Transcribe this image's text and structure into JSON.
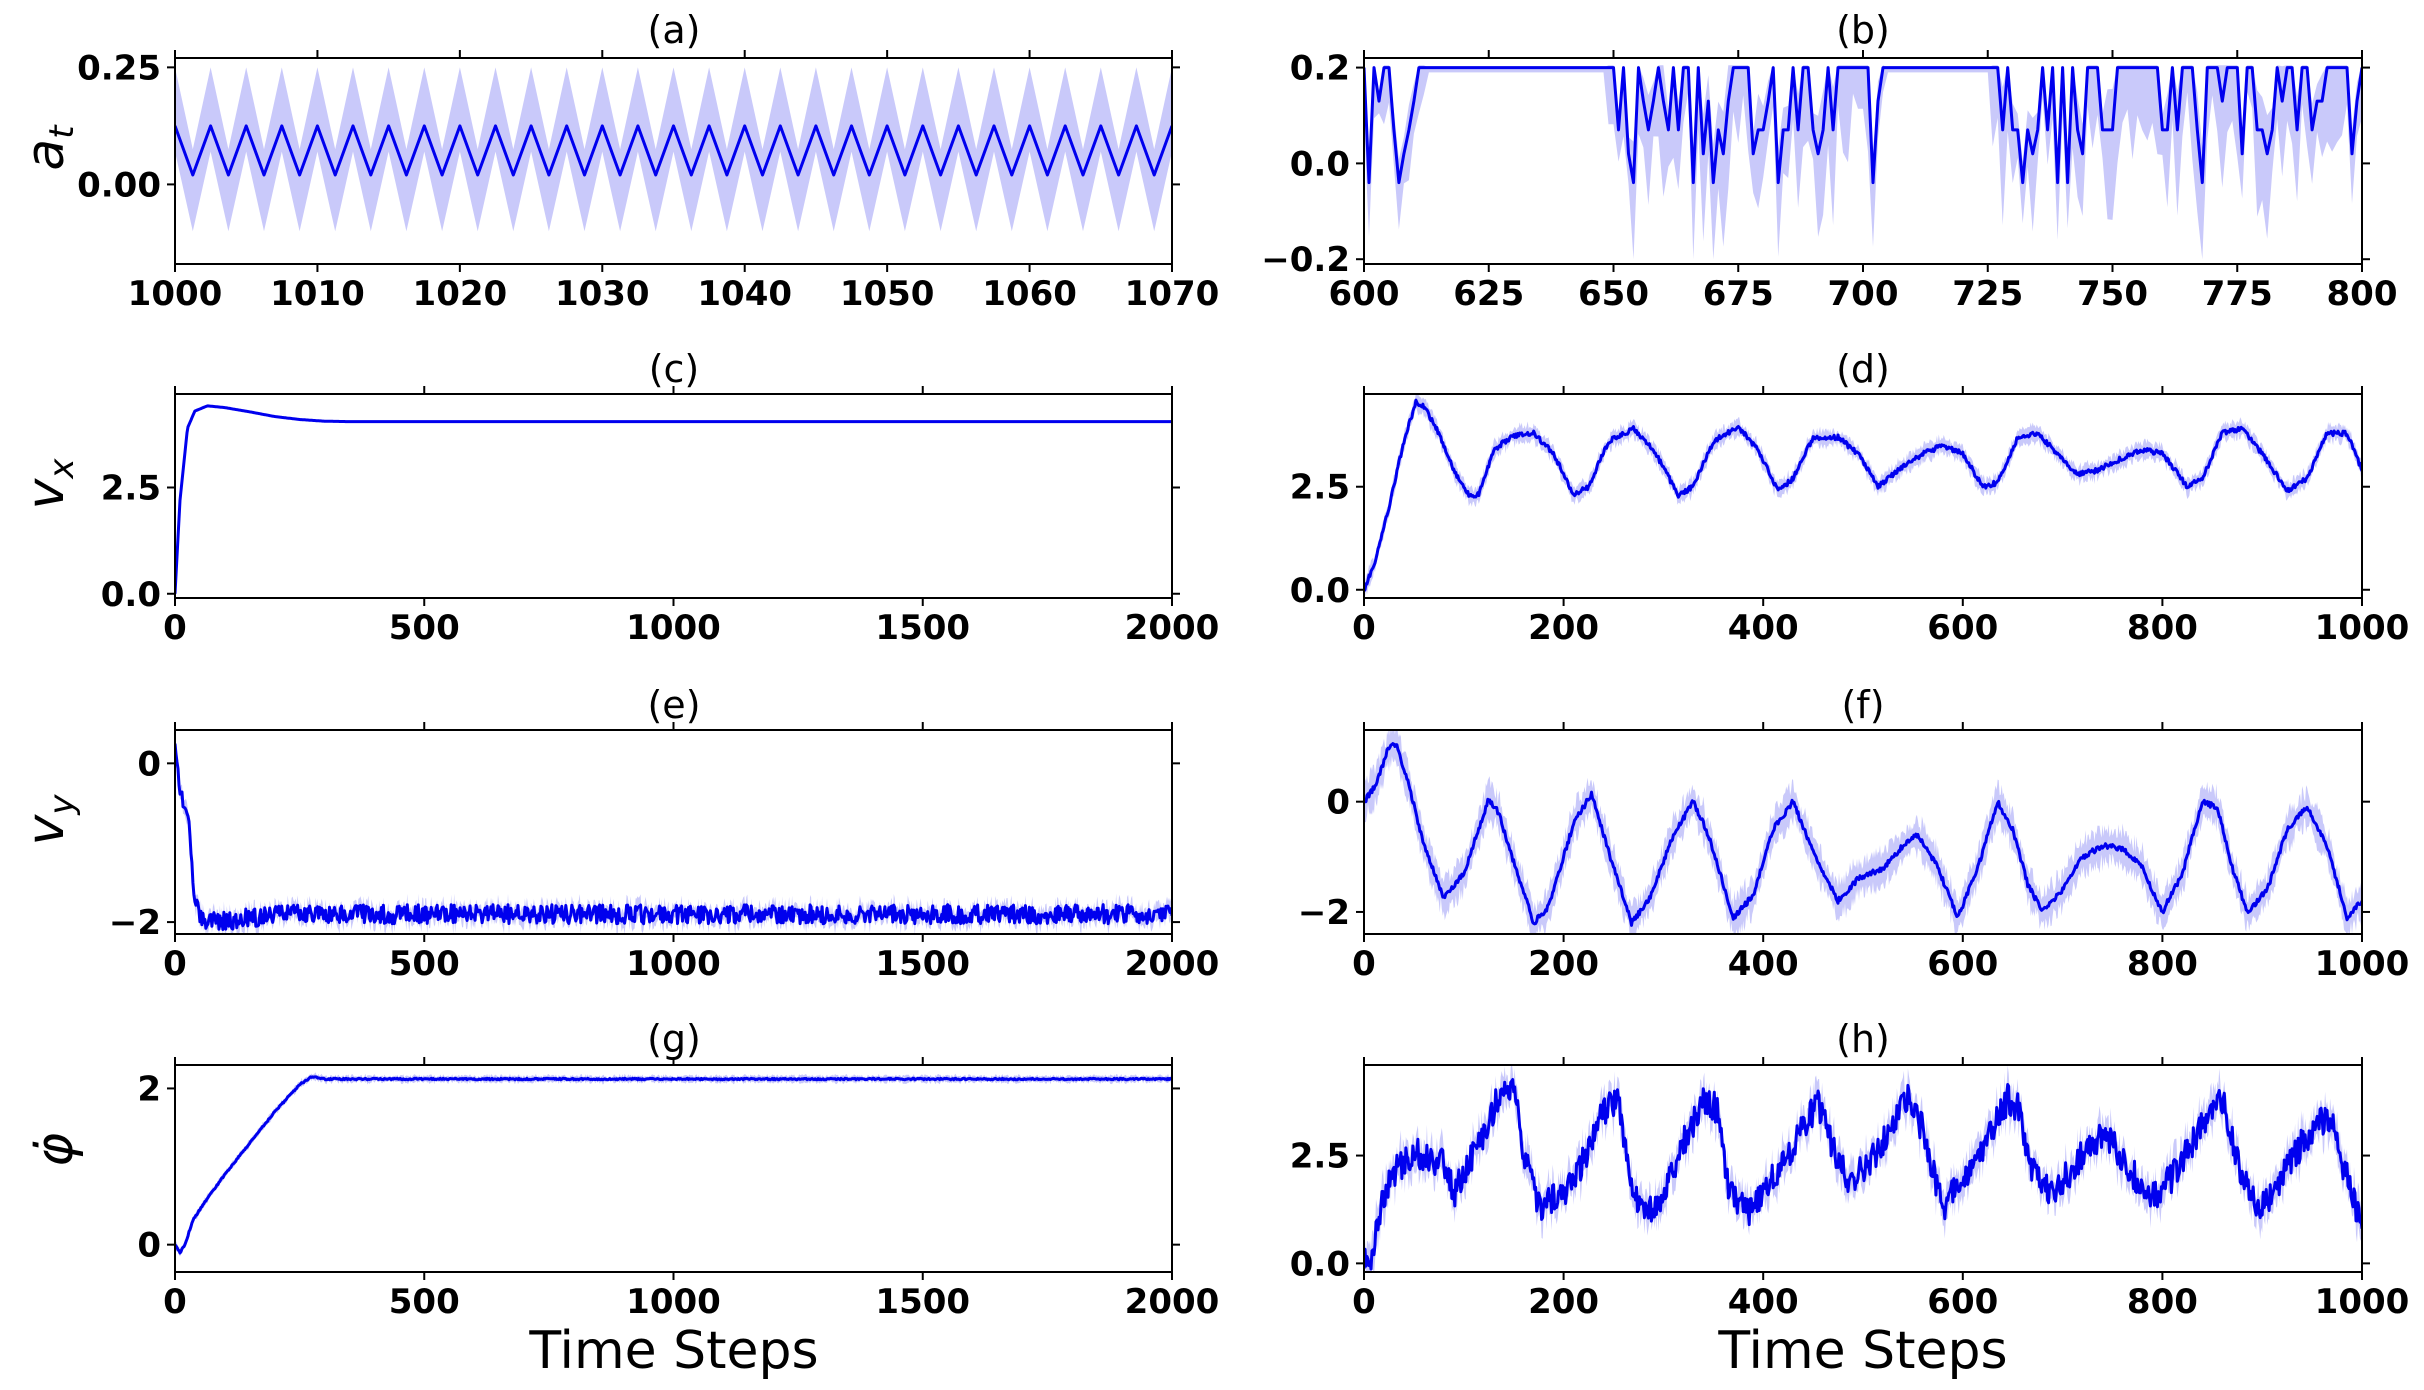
{
  "colors": {
    "line": "#0000ee",
    "band": "#9c9cf6",
    "axes": "#000000"
  },
  "chart_data": [
    {
      "id": "a",
      "type": "line",
      "title": "(a)",
      "ylabel": "a_t",
      "xlabel": "",
      "xlim": [
        1000,
        1070
      ],
      "ylim": [
        -0.17,
        0.27
      ],
      "xticks": [
        1000,
        1010,
        1020,
        1030,
        1040,
        1050,
        1060,
        1070
      ],
      "yticks": [
        0.0,
        0.25
      ],
      "ytick_labels": [
        "0.00",
        "0.25"
      ],
      "generator": {
        "kind": "zigzag",
        "period": 2.5,
        "low": 0.02,
        "high": 0.125,
        "low_band": -0.1,
        "high_band": 0.25
      }
    },
    {
      "id": "b",
      "type": "line",
      "title": "(b)",
      "ylabel": "",
      "xlabel": "",
      "xlim": [
        600,
        800
      ],
      "ylim": [
        -0.21,
        0.22
      ],
      "xticks": [
        600,
        625,
        650,
        675,
        700,
        725,
        750,
        775,
        800
      ],
      "yticks": [
        -0.2,
        0.0,
        0.2
      ],
      "ytick_labels": [
        "−0.2",
        "0.0",
        "0.2"
      ],
      "generator": {
        "kind": "bangbang",
        "seed": 7,
        "high": 0.2,
        "calm_ranges": [
          [
            613,
            648
          ],
          [
            705,
            725
          ]
        ]
      }
    },
    {
      "id": "c",
      "type": "line",
      "title": "(c)",
      "ylabel": "v_x",
      "xlabel": "",
      "xlim": [
        0,
        2000
      ],
      "ylim": [
        -0.1,
        4.7
      ],
      "xticks": [
        0,
        500,
        1000,
        1500,
        2000
      ],
      "yticks": [
        0.0,
        2.5
      ],
      "ytick_labels": [
        "0.0",
        "2.5"
      ],
      "generator": {
        "kind": "keypoints",
        "points": [
          [
            0,
            0.0
          ],
          [
            10,
            2.2
          ],
          [
            25,
            3.9
          ],
          [
            40,
            4.3
          ],
          [
            65,
            4.42
          ],
          [
            100,
            4.38
          ],
          [
            150,
            4.28
          ],
          [
            200,
            4.17
          ],
          [
            250,
            4.1
          ],
          [
            300,
            4.06
          ],
          [
            350,
            4.05
          ],
          [
            2000,
            4.05
          ]
        ],
        "noise": 0.0,
        "band": 0.01
      }
    },
    {
      "id": "d",
      "type": "line",
      "title": "(d)",
      "ylabel": "",
      "xlabel": "",
      "xlim": [
        0,
        1000
      ],
      "ylim": [
        -0.2,
        4.75
      ],
      "xticks": [
        0,
        200,
        400,
        600,
        800,
        1000
      ],
      "yticks": [
        0.0,
        2.5
      ],
      "ytick_labels": [
        "0.0",
        "2.5"
      ],
      "generator": {
        "kind": "keypoints",
        "points": [
          [
            0,
            0.0
          ],
          [
            10,
            0.6
          ],
          [
            25,
            2.0
          ],
          [
            40,
            3.6
          ],
          [
            52,
            4.55
          ],
          [
            60,
            4.45
          ],
          [
            75,
            3.8
          ],
          [
            90,
            2.9
          ],
          [
            105,
            2.3
          ],
          [
            115,
            2.3
          ],
          [
            130,
            3.4
          ],
          [
            150,
            3.75
          ],
          [
            170,
            3.8
          ],
          [
            190,
            3.3
          ],
          [
            210,
            2.3
          ],
          [
            225,
            2.5
          ],
          [
            245,
            3.6
          ],
          [
            270,
            3.9
          ],
          [
            290,
            3.4
          ],
          [
            315,
            2.3
          ],
          [
            330,
            2.5
          ],
          [
            350,
            3.6
          ],
          [
            375,
            3.95
          ],
          [
            395,
            3.4
          ],
          [
            415,
            2.4
          ],
          [
            430,
            2.7
          ],
          [
            450,
            3.7
          ],
          [
            475,
            3.7
          ],
          [
            495,
            3.3
          ],
          [
            515,
            2.5
          ],
          [
            535,
            2.9
          ],
          [
            560,
            3.3
          ],
          [
            580,
            3.5
          ],
          [
            600,
            3.3
          ],
          [
            620,
            2.5
          ],
          [
            635,
            2.6
          ],
          [
            655,
            3.7
          ],
          [
            675,
            3.8
          ],
          [
            695,
            3.3
          ],
          [
            715,
            2.8
          ],
          [
            735,
            2.9
          ],
          [
            760,
            3.2
          ],
          [
            780,
            3.4
          ],
          [
            800,
            3.3
          ],
          [
            825,
            2.5
          ],
          [
            840,
            2.7
          ],
          [
            860,
            3.8
          ],
          [
            880,
            3.9
          ],
          [
            900,
            3.3
          ],
          [
            925,
            2.4
          ],
          [
            945,
            2.7
          ],
          [
            965,
            3.8
          ],
          [
            985,
            3.8
          ],
          [
            1000,
            2.9
          ]
        ],
        "noise": 0.06,
        "band": 0.18
      }
    },
    {
      "id": "e",
      "type": "line",
      "title": "(e)",
      "ylabel": "v_y",
      "xlabel": "",
      "xlim": [
        0,
        2000
      ],
      "ylim": [
        -2.15,
        0.42
      ],
      "xticks": [
        0,
        500,
        1000,
        1500,
        2000
      ],
      "yticks": [
        -2,
        0
      ],
      "ytick_labels": [
        "−2",
        "0"
      ],
      "generator": {
        "kind": "keypoints",
        "points": [
          [
            0,
            0.3
          ],
          [
            8,
            -0.2
          ],
          [
            18,
            -0.6
          ],
          [
            28,
            -0.8
          ],
          [
            38,
            -1.6
          ],
          [
            50,
            -1.9
          ],
          [
            65,
            -2.0
          ],
          [
            100,
            -1.98
          ],
          [
            180,
            -1.93
          ],
          [
            250,
            -1.88
          ],
          [
            300,
            -1.9
          ],
          [
            2000,
            -1.9
          ]
        ],
        "noise": 0.12,
        "band": 0.1
      }
    },
    {
      "id": "f",
      "type": "line",
      "title": "(f)",
      "ylabel": "",
      "xlabel": "",
      "xlim": [
        0,
        1000
      ],
      "ylim": [
        -2.4,
        1.3
      ],
      "xticks": [
        0,
        200,
        400,
        600,
        800,
        1000
      ],
      "yticks": [
        -2,
        0
      ],
      "ytick_labels": [
        "−2",
        "0"
      ],
      "generator": {
        "kind": "keypoints",
        "points": [
          [
            0,
            0.0
          ],
          [
            12,
            0.3
          ],
          [
            25,
            1.0
          ],
          [
            32,
            1.05
          ],
          [
            45,
            0.3
          ],
          [
            60,
            -0.8
          ],
          [
            80,
            -1.75
          ],
          [
            100,
            -1.3
          ],
          [
            125,
            0.05
          ],
          [
            135,
            -0.2
          ],
          [
            150,
            -1.1
          ],
          [
            170,
            -2.2
          ],
          [
            185,
            -1.9
          ],
          [
            210,
            -0.4
          ],
          [
            228,
            0.15
          ],
          [
            245,
            -0.9
          ],
          [
            268,
            -2.2
          ],
          [
            285,
            -1.8
          ],
          [
            310,
            -0.6
          ],
          [
            330,
            0.0
          ],
          [
            345,
            -0.6
          ],
          [
            370,
            -2.1
          ],
          [
            390,
            -1.7
          ],
          [
            410,
            -0.5
          ],
          [
            430,
            0.0
          ],
          [
            450,
            -0.9
          ],
          [
            475,
            -1.8
          ],
          [
            495,
            -1.4
          ],
          [
            520,
            -1.2
          ],
          [
            540,
            -0.8
          ],
          [
            555,
            -0.6
          ],
          [
            575,
            -1.2
          ],
          [
            595,
            -2.1
          ],
          [
            615,
            -1.2
          ],
          [
            635,
            0.0
          ],
          [
            650,
            -0.5
          ],
          [
            665,
            -1.5
          ],
          [
            680,
            -2.0
          ],
          [
            700,
            -1.6
          ],
          [
            720,
            -1.0
          ],
          [
            740,
            -0.8
          ],
          [
            760,
            -0.85
          ],
          [
            780,
            -1.2
          ],
          [
            800,
            -2.0
          ],
          [
            820,
            -1.3
          ],
          [
            840,
            0.0
          ],
          [
            855,
            -0.1
          ],
          [
            870,
            -1.2
          ],
          [
            885,
            -2.0
          ],
          [
            905,
            -1.6
          ],
          [
            925,
            -0.5
          ],
          [
            945,
            -0.1
          ],
          [
            965,
            -0.8
          ],
          [
            985,
            -2.1
          ],
          [
            1000,
            -1.8
          ]
        ],
        "noise": 0.05,
        "band": 0.3
      }
    },
    {
      "id": "g",
      "type": "line",
      "title": "(g)",
      "ylabel": "φ̇",
      "xlabel": "Time Steps",
      "xlim": [
        0,
        2000
      ],
      "ylim": [
        -0.35,
        2.3
      ],
      "xticks": [
        0,
        500,
        1000,
        1500,
        2000
      ],
      "yticks": [
        0,
        2
      ],
      "ytick_labels": [
        "0",
        "2"
      ],
      "generator": {
        "kind": "keypoints",
        "points": [
          [
            0,
            0.0
          ],
          [
            10,
            -0.1
          ],
          [
            20,
            0.0
          ],
          [
            35,
            0.3
          ],
          [
            60,
            0.55
          ],
          [
            100,
            0.9
          ],
          [
            150,
            1.3
          ],
          [
            200,
            1.7
          ],
          [
            250,
            2.05
          ],
          [
            275,
            2.15
          ],
          [
            300,
            2.12
          ],
          [
            2000,
            2.12
          ]
        ],
        "noise": 0.01,
        "band": 0.04
      }
    },
    {
      "id": "h",
      "type": "line",
      "title": "(h)",
      "ylabel": "",
      "xlabel": "Time Steps",
      "xlim": [
        0,
        1000
      ],
      "ylim": [
        -0.2,
        4.6
      ],
      "xticks": [
        0,
        200,
        400,
        600,
        800,
        1000
      ],
      "yticks": [
        0.0,
        2.5
      ],
      "ytick_labels": [
        "0.0",
        "2.5"
      ],
      "generator": {
        "kind": "keypoints",
        "points": [
          [
            0,
            0.0
          ],
          [
            8,
            0.2
          ],
          [
            15,
            1.2
          ],
          [
            30,
            2.1
          ],
          [
            50,
            2.6
          ],
          [
            70,
            2.4
          ],
          [
            80,
            2.4
          ],
          [
            90,
            1.6
          ],
          [
            100,
            2.1
          ],
          [
            120,
            3.0
          ],
          [
            135,
            3.9
          ],
          [
            150,
            4.1
          ],
          [
            160,
            2.5
          ],
          [
            175,
            1.3
          ],
          [
            200,
            1.6
          ],
          [
            220,
            2.4
          ],
          [
            240,
            3.5
          ],
          [
            255,
            3.9
          ],
          [
            265,
            2.2
          ],
          [
            280,
            1.1
          ],
          [
            300,
            1.6
          ],
          [
            320,
            2.8
          ],
          [
            340,
            3.7
          ],
          [
            355,
            3.6
          ],
          [
            365,
            1.7
          ],
          [
            385,
            1.2
          ],
          [
            405,
            1.8
          ],
          [
            425,
            2.5
          ],
          [
            440,
            3.2
          ],
          [
            455,
            3.7
          ],
          [
            470,
            2.7
          ],
          [
            485,
            1.9
          ],
          [
            500,
            2.2
          ],
          [
            520,
            2.8
          ],
          [
            545,
            3.8
          ],
          [
            560,
            3.1
          ],
          [
            580,
            1.3
          ],
          [
            600,
            2.0
          ],
          [
            625,
            2.9
          ],
          [
            645,
            3.8
          ],
          [
            655,
            3.6
          ],
          [
            670,
            2.1
          ],
          [
            690,
            1.6
          ],
          [
            710,
            2.2
          ],
          [
            730,
            2.9
          ],
          [
            750,
            2.8
          ],
          [
            770,
            2.1
          ],
          [
            790,
            1.5
          ],
          [
            810,
            2.0
          ],
          [
            830,
            2.8
          ],
          [
            850,
            3.7
          ],
          [
            860,
            3.8
          ],
          [
            875,
            2.4
          ],
          [
            895,
            1.2
          ],
          [
            915,
            1.8
          ],
          [
            935,
            2.6
          ],
          [
            955,
            3.3
          ],
          [
            970,
            3.4
          ],
          [
            980,
            2.3
          ],
          [
            990,
            1.7
          ],
          [
            1000,
            0.7
          ]
        ],
        "noise": 0.35,
        "band": 0.35
      }
    }
  ]
}
